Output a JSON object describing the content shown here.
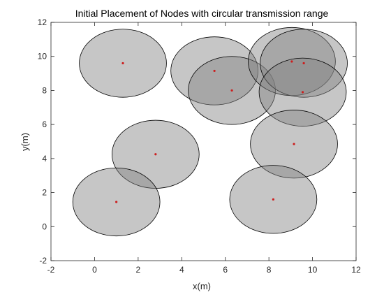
{
  "chart_data": {
    "type": "scatter",
    "title": "Initial Placement of Nodes with circular transmission range",
    "xlabel": "x(m)",
    "ylabel": "y(m)",
    "xlim": [
      -2,
      12
    ],
    "ylim": [
      -2,
      12
    ],
    "x_ticks": [
      "-2",
      "0",
      "2",
      "4",
      "6",
      "8",
      "10",
      "12"
    ],
    "y_ticks": [
      "-2",
      "0",
      "2",
      "4",
      "6",
      "8",
      "10",
      "12"
    ],
    "grid": false,
    "legend": "none",
    "transmission_range": 2.0,
    "nodes": [
      {
        "x": 1.3,
        "y": 9.6
      },
      {
        "x": 5.5,
        "y": 9.15
      },
      {
        "x": 6.3,
        "y": 8.0
      },
      {
        "x": 9.05,
        "y": 9.7
      },
      {
        "x": 9.6,
        "y": 9.6
      },
      {
        "x": 9.55,
        "y": 7.9
      },
      {
        "x": 2.8,
        "y": 4.25
      },
      {
        "x": 9.15,
        "y": 4.85
      },
      {
        "x": 1.0,
        "y": 1.45
      },
      {
        "x": 8.2,
        "y": 1.6
      }
    ],
    "colors": {
      "range_fill": "#808080",
      "range_fill_opacity": 0.45,
      "range_edge": "#000000",
      "node_marker": "#cc1f1f",
      "axes_edge": "#262626"
    }
  }
}
